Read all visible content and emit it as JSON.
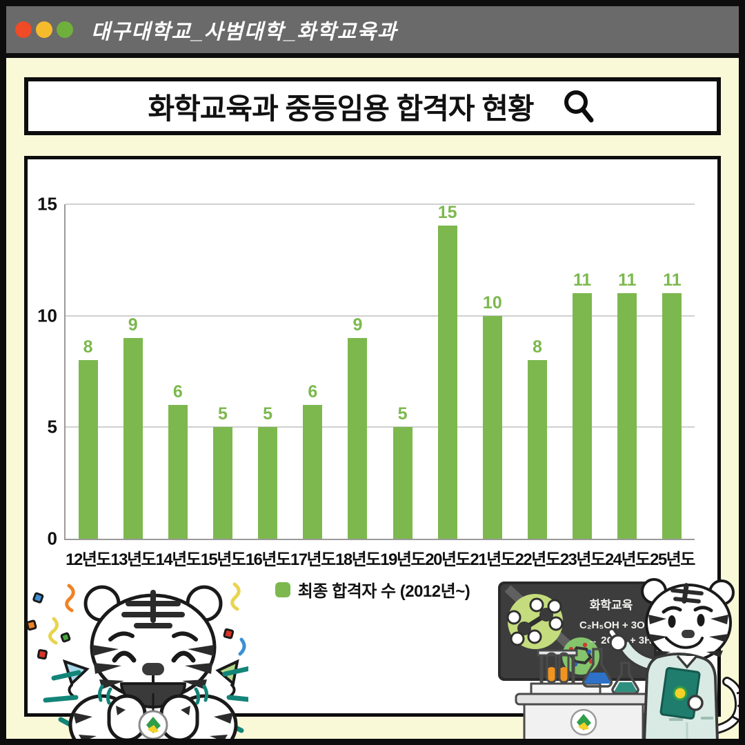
{
  "titlebar": {
    "title": "대구대학교_사범대학_화학교육과",
    "dot_colors": [
      "#ee4b26",
      "#f6bb2d",
      "#6fb03c"
    ]
  },
  "header": {
    "title": "화학교육과 중등임용 합격자 현황"
  },
  "chart_data": {
    "type": "bar",
    "title": "화학교육과 중등임용 합격자 현황",
    "categories": [
      "12년도",
      "13년도",
      "14년도",
      "15년도",
      "16년도",
      "17년도",
      "18년도",
      "19년도",
      "20년도",
      "21년도",
      "22년도",
      "23년도",
      "24년도",
      "25년도"
    ],
    "values": [
      8,
      9,
      6,
      5,
      5,
      6,
      9,
      5,
      15,
      10,
      8,
      11,
      11,
      11
    ],
    "xlabel": "",
    "ylabel": "",
    "ylim": [
      0,
      15
    ],
    "yticks": [
      0,
      5,
      10,
      15
    ],
    "grid": true,
    "legend": {
      "label": "최종 합격자 수 (2012년~)",
      "position": "bottom"
    },
    "bar_color": "#7cb84e",
    "value_label_color": "#7cb84e"
  },
  "chalkboard": {
    "heading": "화학교육",
    "equation_line1": "C₂H₅OH + 3O₂",
    "equation_line2": "→ 2CO₂ + 3H₂O"
  },
  "colors": {
    "background": "#f9f9d8",
    "titlebar_bg": "#6a6a6a",
    "frame": "#0d0d0d",
    "bar_green": "#7cb84e",
    "teal_accent": "#128578",
    "chalkboard_bg": "#3d3d3d",
    "labcoat_mint": "#d8eae3",
    "clipboard_teal": "#1f7d6d"
  }
}
